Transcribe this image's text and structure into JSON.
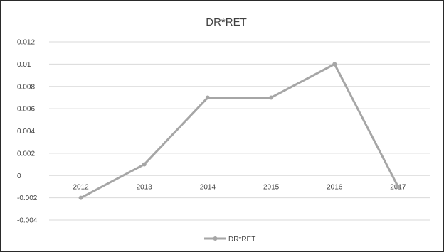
{
  "chart_data": {
    "type": "line",
    "title": "DR*RET",
    "xlabel": "",
    "ylabel": "",
    "categories": [
      "2012",
      "2013",
      "2014",
      "2015",
      "2016",
      "2017"
    ],
    "series": [
      {
        "name": "DR*RET",
        "values": [
          -0.002,
          0.001,
          0.007,
          0.007,
          0.01,
          -0.001
        ],
        "color": "#a6a6a6"
      }
    ],
    "ylim": [
      -0.004,
      0.012
    ],
    "yticks": [
      0.012,
      0.01,
      0.008,
      0.006,
      0.004,
      0.002,
      0,
      -0.002,
      -0.004
    ],
    "ytick_labels": [
      "0.012",
      "0.01",
      "0.008",
      "0.006",
      "0.004",
      "0.002",
      "0",
      "-0.002",
      "-0.004"
    ],
    "grid": true,
    "legend": "bottom",
    "colors": {
      "line": "#a6a6a6",
      "grid": "#d9d9d9",
      "text": "#404040"
    }
  }
}
